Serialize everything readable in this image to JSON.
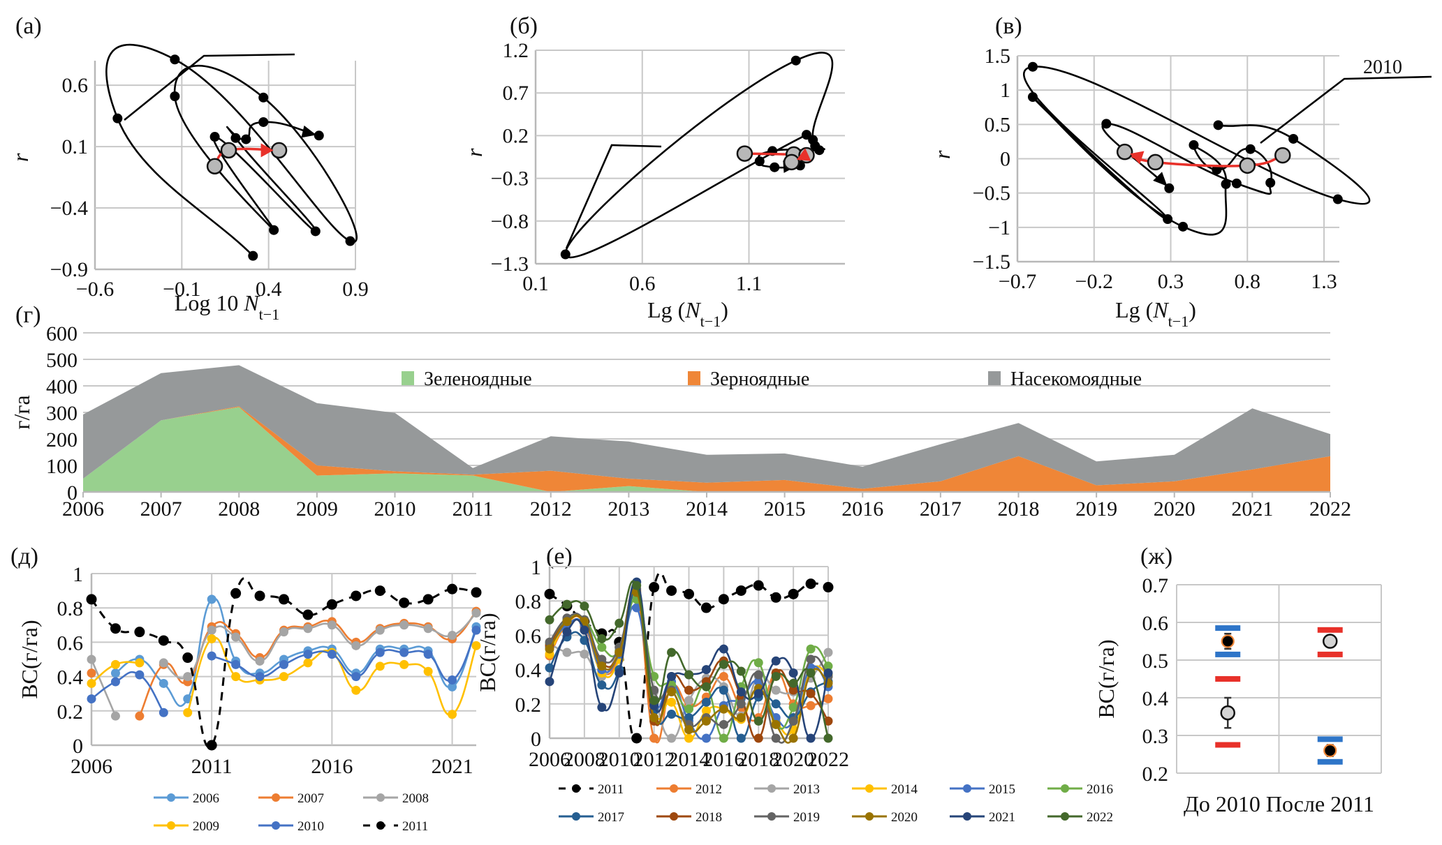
{
  "figure": {
    "panels": [
      "(а)",
      "(б)",
      "(в)",
      "(г)",
      "(д)",
      "(е)",
      "(ж)"
    ]
  },
  "chart_data": [
    {
      "id": "a",
      "panel_label": "(а)",
      "type": "scatter",
      "title": "",
      "xlabel": "Log 10 N",
      "xlabel_sub": "t−1",
      "ylabel": "r",
      "xlim": [
        -0.6,
        0.9
      ],
      "ylim": [
        -0.9,
        0.8
      ],
      "xticks": [
        -0.6,
        -0.1,
        0.4,
        0.9
      ],
      "xtick_labels": [
        "−0.6",
        "−0.1",
        "0.4",
        "0.9"
      ],
      "yticks": [
        -0.9,
        -0.4,
        0.1,
        0.6
      ],
      "ytick_labels": [
        "−0.9",
        "−0.4",
        "0.1",
        "0.6"
      ],
      "grid": true,
      "trajectory_points": [
        {
          "x": 0.31,
          "y": -0.79
        },
        {
          "x": -0.47,
          "y": 0.33
        },
        {
          "x": -0.14,
          "y": 0.81
        },
        {
          "x": 0.87,
          "y": -0.67
        },
        {
          "x": 0.37,
          "y": 0.5
        },
        {
          "x": -0.14,
          "y": 0.51
        },
        {
          "x": 0.43,
          "y": -0.58
        },
        {
          "x": 0.09,
          "y": 0.18
        },
        {
          "x": 0.67,
          "y": -0.59
        },
        {
          "x": 0.21,
          "y": 0.17
        },
        {
          "x": 0.27,
          "y": 0.16
        },
        {
          "x": 0.37,
          "y": 0.3
        },
        {
          "x": 0.69,
          "y": 0.19
        }
      ],
      "highlight_points": [
        {
          "x": 0.09,
          "y": -0.06
        },
        {
          "x": 0.17,
          "y": 0.07
        },
        {
          "x": 0.46,
          "y": 0.07
        }
      ],
      "annotation": ""
    },
    {
      "id": "b",
      "panel_label": "(б)",
      "type": "scatter",
      "xlabel": "Lg (N",
      "xlabel_sub": "t−1",
      "xlabel_end": ")",
      "ylabel": "r",
      "xlim": [
        0.1,
        1.55
      ],
      "ylim": [
        -1.3,
        1.2
      ],
      "xticks": [
        0.1,
        0.6,
        1.1
      ],
      "xtick_labels": [
        "0.1",
        "0.6",
        "1.1"
      ],
      "yticks": [
        -1.3,
        -0.8,
        -0.3,
        0.2,
        0.7,
        1.2
      ],
      "ytick_labels": [
        "−1.3",
        "−0.8",
        "−0.3",
        "0.2",
        "0.7",
        "1.2"
      ],
      "grid": true,
      "trajectory_points": [
        {
          "x": 1.37,
          "y": 0.21
        },
        {
          "x": 0.24,
          "y": -1.19
        },
        {
          "x": 1.32,
          "y": 1.08
        },
        {
          "x": 1.4,
          "y": 0.15
        },
        {
          "x": 1.41,
          "y": 0.08
        },
        {
          "x": 1.43,
          "y": 0.03
        },
        {
          "x": 1.21,
          "y": 0.02
        },
        {
          "x": 1.15,
          "y": -0.1
        },
        {
          "x": 1.22,
          "y": -0.17
        },
        {
          "x": 1.34,
          "y": -0.15
        }
      ],
      "highlight_points": [
        {
          "x": 1.08,
          "y": -0.01
        },
        {
          "x": 1.31,
          "y": -0.02
        },
        {
          "x": 1.37,
          "y": -0.03
        },
        {
          "x": 1.3,
          "y": -0.11
        }
      ],
      "annotation": ""
    },
    {
      "id": "c",
      "panel_label": "(в)",
      "type": "scatter",
      "xlabel": "Lg (N",
      "xlabel_sub": "t−1",
      "xlabel_end": ")",
      "ylabel": "r",
      "xlim": [
        -0.7,
        1.4
      ],
      "ylim": [
        -1.5,
        1.5
      ],
      "xticks": [
        -0.7,
        -0.2,
        0.3,
        0.8,
        1.3
      ],
      "xtick_labels": [
        "−0.7",
        "−0.2",
        "0.3",
        "0.8",
        "1.3"
      ],
      "yticks": [
        -1.5,
        -1,
        -0.5,
        0,
        0.5,
        1,
        1.5
      ],
      "ytick_labels": [
        "−1.5",
        "−1",
        "−0.5",
        "0",
        "0.5",
        "1",
        "1.5"
      ],
      "grid": true,
      "trajectory_points": [
        {
          "x": 0.61,
          "y": 0.49
        },
        {
          "x": 1.1,
          "y": 0.29
        },
        {
          "x": 1.39,
          "y": -0.59
        },
        {
          "x": -0.6,
          "y": 1.34
        },
        {
          "x": 0.28,
          "y": -0.88
        },
        {
          "x": -0.6,
          "y": 0.9
        },
        {
          "x": 0.38,
          "y": -0.99
        },
        {
          "x": 0.66,
          "y": -0.37
        },
        {
          "x": 0.45,
          "y": 0.2
        },
        {
          "x": 0.6,
          "y": -0.16
        },
        {
          "x": 0.82,
          "y": 0.14
        },
        {
          "x": 0.95,
          "y": -0.35
        },
        {
          "x": 0.73,
          "y": -0.36
        },
        {
          "x": -0.12,
          "y": 0.51
        },
        {
          "x": 0.29,
          "y": -0.43
        }
      ],
      "highlight_points": [
        {
          "x": 1.03,
          "y": 0.05
        },
        {
          "x": 0.8,
          "y": -0.1
        },
        {
          "x": 0.2,
          "y": -0.05
        },
        {
          "x": 0.0,
          "y": 0.1
        }
      ],
      "annotation": "2010"
    },
    {
      "id": "g",
      "panel_label": "(г)",
      "type": "area",
      "stacked": true,
      "ylabel": "г/га",
      "xlabel": "",
      "ylim": [
        0,
        600
      ],
      "yticks": [
        0,
        100,
        200,
        300,
        400,
        500,
        600
      ],
      "categories": [
        "2006",
        "2007",
        "2008",
        "2009",
        "2010",
        "2011",
        "2012",
        "2013",
        "2014",
        "2015",
        "2016",
        "2017",
        "2018",
        "2019",
        "2020",
        "2021",
        "2022"
      ],
      "legend_position": "top",
      "series": [
        {
          "name": "Зеленоядные",
          "color": "#98d08e",
          "values": [
            50,
            270,
            320,
            62,
            70,
            62,
            0,
            22,
            0,
            0,
            0,
            0,
            0,
            0,
            0,
            0,
            0
          ]
        },
        {
          "name": "Зерноядные",
          "color": "#ef8637",
          "values": [
            0,
            0,
            3,
            38,
            8,
            3,
            80,
            28,
            35,
            45,
            12,
            40,
            135,
            25,
            40,
            85,
            135
          ]
        },
        {
          "name": "Насекомоядные",
          "color": "#96999a",
          "values": [
            242,
            178,
            155,
            235,
            220,
            25,
            130,
            140,
            105,
            100,
            83,
            140,
            125,
            90,
            100,
            230,
            83
          ]
        }
      ],
      "grid": true
    },
    {
      "id": "d",
      "panel_label": "(д)",
      "type": "line",
      "ylabel": "ВС(г/га)",
      "xlabel": "",
      "xlim": [
        2006,
        2022
      ],
      "ylim": [
        0,
        1
      ],
      "xticks": [
        2006,
        2011,
        2016,
        2021
      ],
      "yticks": [
        0,
        0.2,
        0.4,
        0.6,
        0.8,
        1
      ],
      "ytick_labels": [
        "0",
        "0.2",
        "0.4",
        "0.6",
        "0.8",
        "1"
      ],
      "x": [
        2006,
        2007,
        2008,
        2009,
        2010,
        2011,
        2012,
        2013,
        2014,
        2015,
        2016,
        2017,
        2018,
        2019,
        2020,
        2021,
        2022
      ],
      "legend_position": "bottom",
      "series": [
        {
          "name": "2006",
          "color": "#5b9bd5",
          "dashed": false,
          "values": [
            null,
            0.42,
            0.5,
            0.36,
            0.27,
            0.85,
            0.49,
            0.42,
            0.5,
            0.55,
            0.56,
            0.42,
            0.56,
            0.56,
            0.55,
            0.34,
            0.69
          ]
        },
        {
          "name": "2007",
          "color": "#ed7d31",
          "dashed": false,
          "values": [
            0.42,
            null,
            0.17,
            0.47,
            0.37,
            0.69,
            0.65,
            0.51,
            0.67,
            0.69,
            0.72,
            0.6,
            0.68,
            0.71,
            0.69,
            0.62,
            0.78
          ]
        },
        {
          "name": "2008",
          "color": "#a5a5a5",
          "dashed": false,
          "values": [
            0.5,
            0.17,
            null,
            0.48,
            0.4,
            0.67,
            0.63,
            0.49,
            0.66,
            0.68,
            0.7,
            0.58,
            0.67,
            0.7,
            0.68,
            0.64,
            0.77
          ]
        },
        {
          "name": "2009",
          "color": "#ffc000",
          "dashed": false,
          "values": [
            0.36,
            0.47,
            0.48,
            null,
            0.19,
            0.62,
            0.4,
            0.38,
            0.4,
            0.48,
            0.54,
            0.32,
            0.46,
            0.47,
            0.43,
            0.18,
            0.58
          ]
        },
        {
          "name": "2010",
          "color": "#4472c4",
          "dashed": false,
          "values": [
            0.27,
            0.37,
            0.41,
            0.19,
            null,
            0.52,
            0.47,
            0.4,
            0.47,
            0.53,
            0.53,
            0.4,
            0.54,
            0.54,
            0.53,
            0.38,
            0.67
          ]
        },
        {
          "name": "2011",
          "color": "#000000",
          "dashed": true,
          "values": [
            0.85,
            0.68,
            0.66,
            0.61,
            0.51,
            0.0,
            0.885,
            0.87,
            0.85,
            0.76,
            0.82,
            0.87,
            0.9,
            0.83,
            0.85,
            0.91,
            0.89
          ]
        }
      ],
      "grid": true
    },
    {
      "id": "e",
      "panel_label": "(е)",
      "type": "line",
      "ylabel": "ВС(г/га)",
      "xlabel": "",
      "xlim": [
        2006,
        2022
      ],
      "ylim": [
        0,
        1
      ],
      "xticks": [
        2006,
        2008,
        2010,
        2012,
        2014,
        2016,
        2018,
        2020,
        2022
      ],
      "yticks": [
        0,
        0.2,
        0.4,
        0.6,
        0.8,
        1
      ],
      "ytick_labels": [
        "0",
        "0.2",
        "0.4",
        "0.6",
        "0.8",
        "1"
      ],
      "x": [
        2006,
        2007,
        2008,
        2009,
        2010,
        2011,
        2012,
        2013,
        2014,
        2015,
        2016,
        2017,
        2018,
        2019,
        2020,
        2021,
        2022
      ],
      "legend_position": "bottom",
      "series": [
        {
          "name": "2011",
          "color": "#000000",
          "dashed": true,
          "values": [
            0.84,
            0.77,
            0.68,
            0.61,
            0.56,
            0.0,
            0.88,
            0.86,
            0.84,
            0.76,
            0.81,
            0.86,
            0.89,
            0.82,
            0.84,
            0.9,
            0.88
          ]
        },
        {
          "name": "2012",
          "color": "#ed7d31",
          "dashed": false,
          "values": [
            0.48,
            0.66,
            0.65,
            0.39,
            0.48,
            0.84,
            0.0,
            0.3,
            0.19,
            0.24,
            0.36,
            0.18,
            0.12,
            0.38,
            0.2,
            0.19,
            0.23
          ]
        },
        {
          "name": "2013",
          "color": "#a5a5a5",
          "dashed": false,
          "values": [
            0.55,
            0.5,
            0.49,
            0.36,
            0.53,
            0.83,
            0.27,
            0.0,
            0.22,
            0.35,
            0.3,
            0.13,
            0.36,
            0.28,
            0.27,
            0.35,
            0.5
          ]
        },
        {
          "name": "2014",
          "color": "#ffc000",
          "dashed": false,
          "values": [
            0.49,
            0.67,
            0.67,
            0.38,
            0.46,
            0.83,
            0.16,
            0.21,
            0.0,
            0.16,
            0.17,
            0.11,
            0.29,
            0.1,
            0.05,
            0.39,
            0.37
          ]
        },
        {
          "name": "2015",
          "color": "#4472c4",
          "dashed": false,
          "values": [
            0.53,
            0.66,
            0.66,
            0.4,
            0.49,
            0.76,
            0.2,
            0.33,
            0.1,
            0.0,
            0.19,
            0.23,
            0.33,
            0.12,
            0.1,
            0.41,
            0.3
          ]
        },
        {
          "name": "2016",
          "color": "#70ad47",
          "dashed": false,
          "values": [
            0.55,
            0.69,
            0.69,
            0.53,
            0.51,
            0.81,
            0.36,
            0.31,
            0.17,
            0.3,
            0.0,
            0.3,
            0.44,
            0.08,
            0.18,
            0.52,
            0.42
          ]
        },
        {
          "name": "2017",
          "color": "#255e91",
          "dashed": false,
          "values": [
            0.41,
            0.59,
            0.57,
            0.31,
            0.4,
            0.85,
            0.16,
            0.14,
            0.12,
            0.21,
            0.28,
            0.0,
            0.24,
            0.2,
            0.12,
            0.27,
            0.33
          ]
        },
        {
          "name": "2018",
          "color": "#9e480e",
          "dashed": false,
          "values": [
            0.54,
            0.68,
            0.68,
            0.44,
            0.5,
            0.86,
            0.1,
            0.36,
            0.28,
            0.33,
            0.45,
            0.24,
            0.0,
            0.38,
            0.28,
            0.26,
            0.1
          ]
        },
        {
          "name": "2019",
          "color": "#636363",
          "dashed": false,
          "values": [
            0.56,
            0.7,
            0.69,
            0.46,
            0.53,
            0.87,
            0.28,
            0.28,
            0.08,
            0.12,
            0.08,
            0.2,
            0.37,
            0.0,
            0.1,
            0.46,
            0.36
          ]
        },
        {
          "name": "2020",
          "color": "#997300",
          "dashed": false,
          "values": [
            0.52,
            0.68,
            0.68,
            0.42,
            0.5,
            0.85,
            0.12,
            0.27,
            0.05,
            0.1,
            0.17,
            0.12,
            0.29,
            0.08,
            0.0,
            0.38,
            0.32
          ]
        },
        {
          "name": "2021",
          "color": "#264478",
          "dashed": false,
          "values": [
            0.33,
            0.62,
            0.63,
            0.18,
            0.38,
            0.91,
            0.19,
            0.36,
            0.37,
            0.4,
            0.52,
            0.27,
            0.26,
            0.45,
            0.38,
            0.0,
            0.38
          ]
        },
        {
          "name": "2022",
          "color": "#43682b",
          "dashed": false,
          "values": [
            0.69,
            0.78,
            0.77,
            0.58,
            0.67,
            0.89,
            0.22,
            0.5,
            0.37,
            0.3,
            0.43,
            0.39,
            0.1,
            0.36,
            0.32,
            0.38,
            0.0
          ]
        }
      ],
      "grid": true
    },
    {
      "id": "zh",
      "panel_label": "(ж)",
      "type": "scatter",
      "ylabel": "ВС(г/га)",
      "xlabel": "",
      "categories": [
        "До 2010",
        "После 2011"
      ],
      "ylim": [
        0.2,
        0.7
      ],
      "yticks": [
        0.2,
        0.3,
        0.4,
        0.5,
        0.6,
        0.7
      ],
      "ytick_labels": [
        "0.2",
        "0.3",
        "0.4",
        "0.5",
        "0.6",
        "0.7"
      ],
      "grid": true,
      "points": [
        {
          "category": "До 2010",
          "kind": "black",
          "mean": 0.55,
          "err_low": 0.53,
          "err_high": 0.57,
          "band_color": "#2e75c8",
          "band_low": 0.515,
          "band_high": 0.585
        },
        {
          "category": "До 2010",
          "kind": "gray",
          "mean": 0.36,
          "err_low": 0.32,
          "err_high": 0.4,
          "band_color": "#e8312a",
          "band_low": 0.275,
          "band_high": 0.45
        },
        {
          "category": "После 2011",
          "kind": "gray",
          "mean": 0.55,
          "err_low": 0.54,
          "err_high": 0.56,
          "band_color": "#e8312a",
          "band_low": 0.515,
          "band_high": 0.58
        },
        {
          "category": "После 2011",
          "kind": "black",
          "mean": 0.26,
          "err_low": 0.245,
          "err_high": 0.275,
          "band_color": "#2e75c8",
          "band_low": 0.23,
          "band_high": 0.29
        }
      ]
    }
  ]
}
